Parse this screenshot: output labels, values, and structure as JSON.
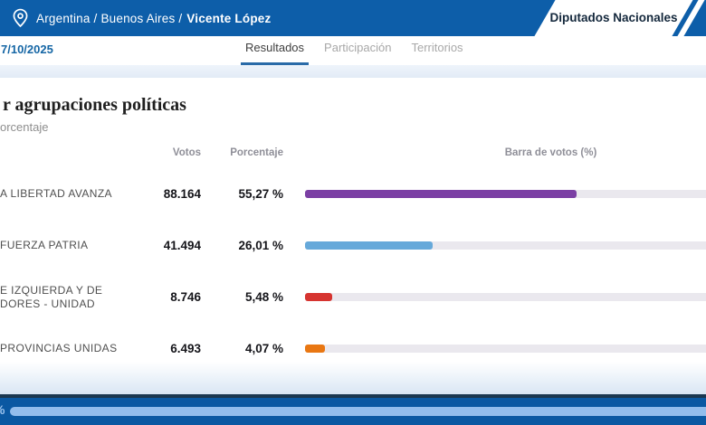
{
  "topbar": {
    "breadcrumb_prefix": "Argentina / Buenos Aires /",
    "breadcrumb_current": "Vicente López",
    "category_tab_label": "Diputados Nacionales"
  },
  "subheader": {
    "date": "7/10/2025",
    "tabs": [
      {
        "label": "Resultados",
        "active": true
      },
      {
        "label": "Participación",
        "active": false
      },
      {
        "label": "Territorios",
        "active": false
      }
    ]
  },
  "main": {
    "title": "r agrupaciones políticas",
    "subtitle": "orcentaje"
  },
  "results_table": {
    "headers": {
      "votes": "Votos",
      "percentage": "Porcentaje",
      "bar": "Barra de votos (%)"
    },
    "rows": [
      {
        "party_lines": [
          "A LIBERTAD AVANZA",
          ""
        ],
        "votes": "88.164",
        "percentage": "55,27 %",
        "percent_value": 55.27,
        "bar_color": "#7b3fa4"
      },
      {
        "party_lines": [
          "FUERZA PATRIA",
          ""
        ],
        "votes": "41.494",
        "percentage": "26,01 %",
        "percent_value": 26.01,
        "bar_color": "#66a9da"
      },
      {
        "party_lines": [
          "E IZQUIERDA Y DE",
          "DORES - UNIDAD"
        ],
        "votes": "8.746",
        "percentage": "5,48 %",
        "percent_value": 5.48,
        "bar_color": "#d63430"
      },
      {
        "party_lines": [
          "PROVINCIAS UNIDAS",
          ""
        ],
        "votes": "6.493",
        "percentage": "4,07 %",
        "percent_value": 4.07,
        "bar_color": "#e97712"
      }
    ]
  },
  "footer": {
    "percent_label": "%"
  },
  "colors": {
    "topbar_blue": "#0d5ea9",
    "footer_blue": "#0a58a2",
    "accent_underline": "#2a6ba8",
    "track_gray": "#eae8ee",
    "progress_lightblue": "#92bdec"
  },
  "chart_data": {
    "type": "bar",
    "categories": [
      "A LIBERTAD AVANZA",
      "FUERZA PATRIA",
      "E IZQUIERDA Y DE DORES - UNIDAD",
      "PROVINCIAS UNIDAS"
    ],
    "series": [
      {
        "name": "Votos",
        "values": [
          88164,
          41494,
          8746,
          6493
        ]
      },
      {
        "name": "Porcentaje",
        "values": [
          55.27,
          26.01,
          5.48,
          4.07
        ]
      }
    ],
    "title": "r agrupaciones políticas",
    "xlabel": "Barra de votos (%)",
    "ylabel": "",
    "bar_colors": [
      "#7b3fa4",
      "#66a9da",
      "#d63430",
      "#e97712"
    ],
    "xlim": [
      0,
      100
    ],
    "orientation": "horizontal",
    "grid": false,
    "legend_position": "none"
  }
}
